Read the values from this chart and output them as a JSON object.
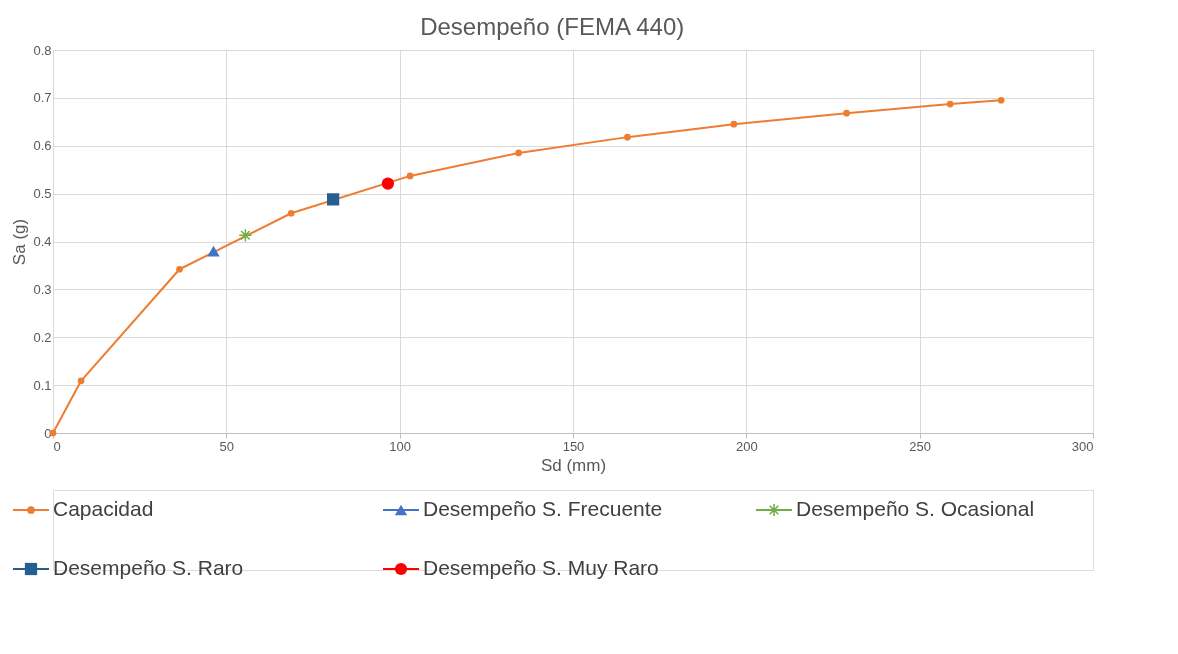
{
  "chart_data": {
    "type": "line",
    "title": "Desempeño (FEMA 440)",
    "xlabel": "Sd (mm)",
    "ylabel": "Sa (g)",
    "xlim": [
      0,
      300
    ],
    "xticks": [
      0,
      50,
      100,
      150,
      200,
      250,
      300
    ],
    "ylim": [
      0,
      0.8
    ],
    "yticks": [
      0,
      0.1,
      0.2,
      0.3,
      0.4,
      0.5,
      0.6,
      0.7,
      0.8
    ],
    "grid": true,
    "legend": "bottom",
    "series": [
      {
        "name": "Capacidad",
        "marker": "circle",
        "color": "#ed7d31",
        "x": [
          0,
          8.1,
          36.5,
          68.7,
          103,
          134.3,
          165.7,
          196.4,
          228.9,
          258.8,
          273.5
        ],
        "values": [
          0,
          0.109,
          0.342,
          0.459,
          0.537,
          0.585,
          0.618,
          0.645,
          0.668,
          0.687,
          0.695
        ]
      },
      {
        "name": "Desempeño S. Frecuente",
        "type": "scatter",
        "marker": "triangle",
        "color": "#4472c4",
        "x": [
          46.3
        ],
        "values": [
          0.38
        ]
      },
      {
        "name": "Desempeño S. Ocasional",
        "type": "scatter",
        "marker": "cross",
        "color": "#70ad47",
        "x": [
          55.5
        ],
        "values": [
          0.413
        ]
      },
      {
        "name": "Desempeño S. Raro",
        "type": "scatter",
        "marker": "square",
        "color": "#255e91",
        "x": [
          80.8
        ],
        "values": [
          0.488
        ]
      },
      {
        "name": "Desempeño S. Muy Raro",
        "type": "scatter",
        "marker": "circle",
        "color": "#ff0000",
        "x": [
          96.6
        ],
        "values": [
          0.521
        ]
      }
    ]
  }
}
